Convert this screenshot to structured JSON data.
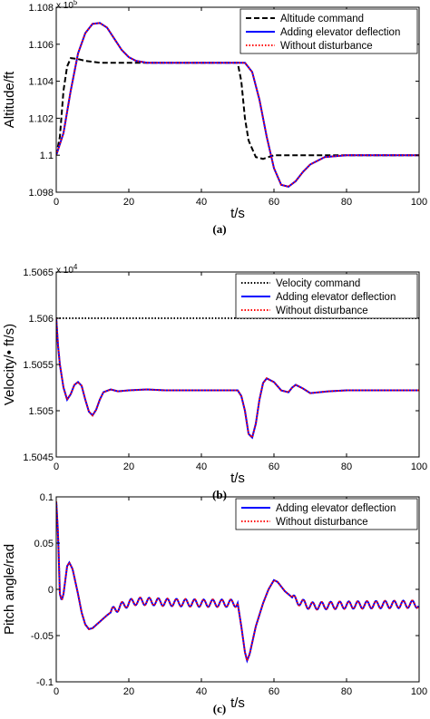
{
  "chart_data": [
    {
      "type": "line",
      "caption": "(a)",
      "xlabel": "t/s",
      "ylabel": "Altitude/ft",
      "y_multiplier": "x 10",
      "y_exponent": "5",
      "xlim": [
        0,
        100
      ],
      "ylim": [
        1.098,
        1.108
      ],
      "xticks": [
        "0",
        "20",
        "40",
        "60",
        "80",
        "100"
      ],
      "yticks": [
        "1.098",
        "1.1",
        "1.102",
        "1.104",
        "1.106",
        "1.108"
      ],
      "legend_position": "top-right",
      "series": [
        {
          "name": "Altitude command",
          "color": "#000000",
          "style": "dashed",
          "points": [
            [
              0,
              1.1
            ],
            [
              1,
              1.101
            ],
            [
              2,
              1.1035
            ],
            [
              3,
              1.1048
            ],
            [
              4,
              1.10525
            ],
            [
              6,
              1.1052
            ],
            [
              8,
              1.1051
            ],
            [
              12,
              1.105
            ],
            [
              50,
              1.105
            ],
            [
              51,
              1.104
            ],
            [
              52,
              1.102
            ],
            [
              53,
              1.1008
            ],
            [
              55,
              1.0999
            ],
            [
              57,
              1.0998
            ],
            [
              60,
              1.1
            ],
            [
              100,
              1.1
            ]
          ]
        },
        {
          "name": "Adding elevator deflection",
          "color": "#0000ff",
          "style": "solid",
          "points": [
            [
              0,
              1.1
            ],
            [
              2,
              1.1012
            ],
            [
              4,
              1.1035
            ],
            [
              6,
              1.1055
            ],
            [
              8,
              1.1066
            ],
            [
              10,
              1.1071
            ],
            [
              12,
              1.10715
            ],
            [
              14,
              1.1069
            ],
            [
              16,
              1.1063
            ],
            [
              18,
              1.1057
            ],
            [
              20,
              1.1053
            ],
            [
              22,
              1.1051
            ],
            [
              25,
              1.105
            ],
            [
              52,
              1.105
            ],
            [
              54,
              1.1045
            ],
            [
              56,
              1.103
            ],
            [
              58,
              1.101
            ],
            [
              60,
              1.0993
            ],
            [
              62,
              1.0984
            ],
            [
              64,
              1.0983
            ],
            [
              66,
              1.0986
            ],
            [
              68,
              1.0991
            ],
            [
              70,
              1.0995
            ],
            [
              74,
              1.0999
            ],
            [
              80,
              1.1
            ],
            [
              100,
              1.1
            ]
          ]
        },
        {
          "name": "Without disturbance",
          "color": "#ff0000",
          "style": "dotted",
          "points": [
            [
              0,
              1.1
            ],
            [
              2,
              1.1012
            ],
            [
              4,
              1.1035
            ],
            [
              6,
              1.1055
            ],
            [
              8,
              1.1066
            ],
            [
              10,
              1.1071
            ],
            [
              12,
              1.10715
            ],
            [
              14,
              1.1069
            ],
            [
              16,
              1.1063
            ],
            [
              18,
              1.1057
            ],
            [
              20,
              1.1053
            ],
            [
              22,
              1.1051
            ],
            [
              25,
              1.105
            ],
            [
              52,
              1.105
            ],
            [
              54,
              1.1045
            ],
            [
              56,
              1.103
            ],
            [
              58,
              1.101
            ],
            [
              60,
              1.0993
            ],
            [
              62,
              1.0984
            ],
            [
              64,
              1.0983
            ],
            [
              66,
              1.0986
            ],
            [
              68,
              1.0991
            ],
            [
              70,
              1.0995
            ],
            [
              74,
              1.0999
            ],
            [
              80,
              1.1
            ],
            [
              100,
              1.1
            ]
          ]
        }
      ]
    },
    {
      "type": "line",
      "caption": "(b)",
      "xlabel": "t/s",
      "ylabel": "Velocity/• ft/s)",
      "y_multiplier": "x 10",
      "y_exponent": "4",
      "xlim": [
        0,
        100
      ],
      "ylim": [
        1.5045,
        1.5065
      ],
      "xticks": [
        "0",
        "20",
        "40",
        "60",
        "80",
        "100"
      ],
      "yticks": [
        "1.5045",
        "1.505",
        "1.5055",
        "1.506",
        "1.5065"
      ],
      "legend_position": "top-right",
      "series": [
        {
          "name": "Velocity command",
          "color": "#000000",
          "style": "dotted",
          "points": [
            [
              0,
              1.506
            ],
            [
              100,
              1.506
            ]
          ]
        },
        {
          "name": "Adding elevator deflection",
          "color": "#0000ff",
          "style": "solid",
          "points": [
            [
              0,
              1.506
            ],
            [
              0.5,
              1.5057
            ],
            [
              1,
              1.5055
            ],
            [
              2,
              1.50525
            ],
            [
              3,
              1.50512
            ],
            [
              4,
              1.50518
            ],
            [
              5,
              1.50528
            ],
            [
              6,
              1.50531
            ],
            [
              7,
              1.50527
            ],
            [
              8,
              1.50512
            ],
            [
              9,
              1.50499
            ],
            [
              10,
              1.50495
            ],
            [
              11,
              1.50501
            ],
            [
              12,
              1.50512
            ],
            [
              13,
              1.5052
            ],
            [
              15,
              1.50523
            ],
            [
              17,
              1.50521
            ],
            [
              20,
              1.50522
            ],
            [
              25,
              1.50523
            ],
            [
              30,
              1.50522
            ],
            [
              50,
              1.50522
            ],
            [
              51,
              1.50516
            ],
            [
              52,
              1.505
            ],
            [
              53,
              1.50475
            ],
            [
              54,
              1.50471
            ],
            [
              55,
              1.50486
            ],
            [
              56,
              1.50512
            ],
            [
              57,
              1.5053
            ],
            [
              58,
              1.50535
            ],
            [
              60,
              1.50531
            ],
            [
              62,
              1.50522
            ],
            [
              64,
              1.5052
            ],
            [
              65,
              1.50525
            ],
            [
              66,
              1.50528
            ],
            [
              68,
              1.50524
            ],
            [
              70,
              1.50519
            ],
            [
              75,
              1.50521
            ],
            [
              80,
              1.50522
            ],
            [
              100,
              1.50522
            ]
          ]
        },
        {
          "name": "Without disturbance",
          "color": "#ff0000",
          "style": "dotted",
          "points": [
            [
              0,
              1.506
            ],
            [
              0.5,
              1.5057
            ],
            [
              1,
              1.5055
            ],
            [
              2,
              1.50525
            ],
            [
              3,
              1.50512
            ],
            [
              4,
              1.50518
            ],
            [
              5,
              1.50528
            ],
            [
              6,
              1.50531
            ],
            [
              7,
              1.50527
            ],
            [
              8,
              1.50512
            ],
            [
              9,
              1.50499
            ],
            [
              10,
              1.50495
            ],
            [
              11,
              1.50501
            ],
            [
              12,
              1.50512
            ],
            [
              13,
              1.5052
            ],
            [
              15,
              1.50523
            ],
            [
              17,
              1.50521
            ],
            [
              20,
              1.50522
            ],
            [
              25,
              1.50523
            ],
            [
              30,
              1.50522
            ],
            [
              50,
              1.50522
            ],
            [
              51,
              1.50516
            ],
            [
              52,
              1.505
            ],
            [
              53,
              1.50475
            ],
            [
              54,
              1.50471
            ],
            [
              55,
              1.50486
            ],
            [
              56,
              1.50512
            ],
            [
              57,
              1.5053
            ],
            [
              58,
              1.50535
            ],
            [
              60,
              1.50531
            ],
            [
              62,
              1.50522
            ],
            [
              64,
              1.5052
            ],
            [
              65,
              1.50525
            ],
            [
              66,
              1.50528
            ],
            [
              68,
              1.50524
            ],
            [
              70,
              1.50519
            ],
            [
              75,
              1.50521
            ],
            [
              80,
              1.50522
            ],
            [
              100,
              1.50522
            ]
          ]
        }
      ]
    },
    {
      "type": "line",
      "caption": "(c)",
      "xlabel": "t/s",
      "ylabel": "Pitch angle/rad",
      "xlim": [
        0,
        100
      ],
      "ylim": [
        -0.1,
        0.1
      ],
      "xticks": [
        "0",
        "20",
        "40",
        "60",
        "80",
        "100"
      ],
      "yticks": [
        "-0.1",
        "-0.05",
        "0",
        "0.05",
        "0.1"
      ],
      "legend_position": "top-right",
      "oscillation": {
        "amplitude": 0.004,
        "period": 2.5
      },
      "series": [
        {
          "name": "Adding elevator deflection",
          "color": "#0000ff",
          "style": "solid",
          "points": [
            [
              0,
              0.095
            ],
            [
              0.5,
              0.06
            ],
            [
              1,
              -0.005
            ],
            [
              1.5,
              -0.012
            ],
            [
              2,
              -0.005
            ],
            [
              3,
              0.025
            ],
            [
              3.6,
              0.029
            ],
            [
              4.5,
              0.022
            ],
            [
              6,
              -0.005
            ],
            [
              7,
              -0.025
            ],
            [
              8,
              -0.038
            ],
            [
              9,
              -0.043
            ],
            [
              10,
              -0.042
            ],
            [
              12,
              -0.035
            ],
            [
              14,
              -0.028
            ],
            [
              16,
              -0.022
            ],
            [
              18,
              -0.018
            ],
            [
              20,
              -0.015
            ],
            [
              22,
              -0.013
            ],
            [
              25,
              -0.013
            ],
            [
              30,
              -0.014
            ],
            [
              40,
              -0.015
            ],
            [
              50,
              -0.015
            ],
            [
              51,
              -0.04
            ],
            [
              52,
              -0.068
            ],
            [
              52.6,
              -0.077
            ],
            [
              53.3,
              -0.07
            ],
            [
              55,
              -0.04
            ],
            [
              57,
              -0.015
            ],
            [
              58.5,
              0.0
            ],
            [
              60,
              0.01
            ],
            [
              61,
              0.008
            ],
            [
              63,
              -0.002
            ],
            [
              66,
              -0.012
            ],
            [
              70,
              -0.018
            ],
            [
              80,
              -0.017
            ],
            [
              100,
              -0.016
            ]
          ]
        },
        {
          "name": "Without disturbance",
          "color": "#ff0000",
          "style": "dotted",
          "points": [
            [
              0,
              0.095
            ],
            [
              0.5,
              0.06
            ],
            [
              1,
              -0.005
            ],
            [
              1.5,
              -0.012
            ],
            [
              2,
              -0.005
            ],
            [
              3,
              0.025
            ],
            [
              3.6,
              0.029
            ],
            [
              4.5,
              0.022
            ],
            [
              6,
              -0.005
            ],
            [
              7,
              -0.025
            ],
            [
              8,
              -0.038
            ],
            [
              9,
              -0.043
            ],
            [
              10,
              -0.042
            ],
            [
              12,
              -0.035
            ],
            [
              14,
              -0.028
            ],
            [
              16,
              -0.022
            ],
            [
              18,
              -0.018
            ],
            [
              20,
              -0.015
            ],
            [
              22,
              -0.013
            ],
            [
              25,
              -0.013
            ],
            [
              30,
              -0.014
            ],
            [
              40,
              -0.015
            ],
            [
              50,
              -0.015
            ],
            [
              51,
              -0.04
            ],
            [
              52,
              -0.068
            ],
            [
              52.6,
              -0.077
            ],
            [
              53.3,
              -0.07
            ],
            [
              55,
              -0.04
            ],
            [
              57,
              -0.015
            ],
            [
              58.5,
              0.0
            ],
            [
              60,
              0.01
            ],
            [
              61,
              0.008
            ],
            [
              63,
              -0.002
            ],
            [
              66,
              -0.012
            ],
            [
              70,
              -0.018
            ],
            [
              80,
              -0.017
            ],
            [
              100,
              -0.016
            ]
          ]
        }
      ]
    }
  ]
}
